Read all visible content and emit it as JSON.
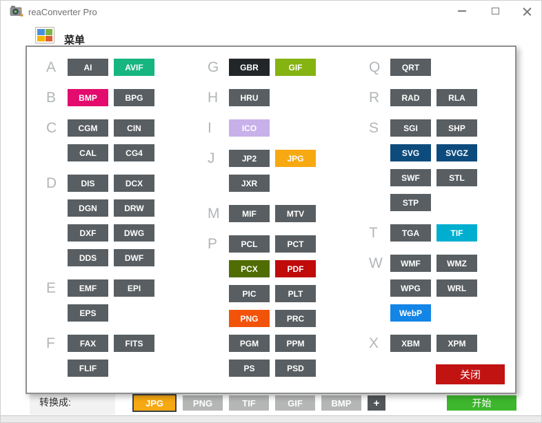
{
  "window": {
    "title": "reaConverter Pro"
  },
  "menu_button": {
    "label": "菜单"
  },
  "colors": {
    "default_button": "#585e62",
    "letter_gray": "#b2b6b8",
    "close_red": "#c21313",
    "start_green": "#3eb72e",
    "bar_gray": "#b5b6b6",
    "plus_dark": "#53575a",
    "jpg_orange": "#f7a912",
    "selected_border": "#3c4144"
  },
  "dialog": {
    "close_button_label": "关闭",
    "columns": [
      {
        "groups": [
          {
            "letter": "A",
            "rows": [
              [
                {
                  "label": "AI"
                },
                {
                  "label": "AVIF",
                  "bg": "#17b57f"
                }
              ]
            ]
          },
          {
            "letter": "B",
            "rows": [
              [
                {
                  "label": "BMP",
                  "bg": "#e30b6d"
                },
                {
                  "label": "BPG"
                }
              ]
            ]
          },
          {
            "letter": "C",
            "rows": [
              [
                {
                  "label": "CGM"
                },
                {
                  "label": "CIN"
                }
              ],
              [
                {
                  "label": "CAL"
                },
                {
                  "label": "CG4"
                }
              ]
            ]
          },
          {
            "letter": "D",
            "rows": [
              [
                {
                  "label": "DIS"
                },
                {
                  "label": "DCX"
                }
              ],
              [
                {
                  "label": "DGN"
                },
                {
                  "label": "DRW"
                }
              ],
              [
                {
                  "label": "DXF"
                },
                {
                  "label": "DWG"
                }
              ],
              [
                {
                  "label": "DDS"
                },
                {
                  "label": "DWF"
                }
              ]
            ]
          },
          {
            "letter": "E",
            "rows": [
              [
                {
                  "label": "EMF"
                },
                {
                  "label": "EPI"
                }
              ],
              [
                {
                  "label": "EPS"
                }
              ]
            ]
          },
          {
            "letter": "F",
            "rows": [
              [
                {
                  "label": "FAX"
                },
                {
                  "label": "FITS"
                }
              ],
              [
                {
                  "label": "FLIF"
                }
              ]
            ]
          }
        ]
      },
      {
        "groups": [
          {
            "letter": "G",
            "rows": [
              [
                {
                  "label": "GBR",
                  "bg": "#232629"
                },
                {
                  "label": "GIF",
                  "bg": "#85b312"
                }
              ]
            ]
          },
          {
            "letter": "H",
            "rows": [
              [
                {
                  "label": "HRU"
                }
              ]
            ]
          },
          {
            "letter": "I",
            "rows": [
              [
                {
                  "label": "ICO",
                  "bg": "#c8b0ea"
                }
              ]
            ]
          },
          {
            "letter": "J",
            "rows": [
              [
                {
                  "label": "JP2"
                },
                {
                  "label": "JPG",
                  "bg": "#f7a912"
                }
              ],
              [
                {
                  "label": "JXR"
                }
              ]
            ]
          },
          {
            "letter": "M",
            "rows": [
              [
                {
                  "label": "MIF"
                },
                {
                  "label": "MTV"
                }
              ]
            ]
          },
          {
            "letter": "P",
            "rows": [
              [
                {
                  "label": "PCL"
                },
                {
                  "label": "PCT"
                }
              ],
              [
                {
                  "label": "PCX",
                  "bg": "#506d04"
                },
                {
                  "label": "PDF",
                  "bg": "#c00b0b"
                }
              ],
              [
                {
                  "label": "PIC"
                },
                {
                  "label": "PLT"
                }
              ],
              [
                {
                  "label": "PNG",
                  "bg": "#f2530b"
                },
                {
                  "label": "PRC"
                }
              ],
              [
                {
                  "label": "PGM"
                },
                {
                  "label": "PPM"
                }
              ],
              [
                {
                  "label": "PS"
                },
                {
                  "label": "PSD"
                }
              ]
            ]
          }
        ]
      },
      {
        "groups": [
          {
            "letter": "Q",
            "rows": [
              [
                {
                  "label": "QRT"
                }
              ]
            ]
          },
          {
            "letter": "R",
            "rows": [
              [
                {
                  "label": "RAD"
                },
                {
                  "label": "RLA"
                }
              ]
            ]
          },
          {
            "letter": "S",
            "rows": [
              [
                {
                  "label": "SGI"
                },
                {
                  "label": "SHP"
                }
              ],
              [
                {
                  "label": "SVG",
                  "bg": "#0d4b7d"
                },
                {
                  "label": "SVGZ",
                  "bg": "#0d4b7d"
                }
              ],
              [
                {
                  "label": "SWF"
                },
                {
                  "label": "STL"
                }
              ],
              [
                {
                  "label": "STP"
                }
              ]
            ]
          },
          {
            "letter": "T",
            "rows": [
              [
                {
                  "label": "TGA"
                },
                {
                  "label": "TIF",
                  "bg": "#00afd0"
                }
              ]
            ]
          },
          {
            "letter": "W",
            "rows": [
              [
                {
                  "label": "WMF"
                },
                {
                  "label": "WMZ"
                }
              ],
              [
                {
                  "label": "WPG"
                },
                {
                  "label": "WRL"
                }
              ],
              [
                {
                  "label": "WebP",
                  "bg": "#1385e6"
                }
              ]
            ]
          },
          {
            "letter": "X",
            "rows": [
              [
                {
                  "label": "XBM"
                },
                {
                  "label": "XPM"
                }
              ]
            ]
          }
        ]
      }
    ]
  },
  "bottom_bar": {
    "convert_to_label": "转换成:",
    "formats": [
      {
        "label": "JPG",
        "selected": true
      },
      {
        "label": "PNG",
        "selected": false
      },
      {
        "label": "TIF",
        "selected": false
      },
      {
        "label": "GIF",
        "selected": false
      },
      {
        "label": "BMP",
        "selected": false
      }
    ],
    "add_label": "+",
    "start_label": "开始"
  }
}
